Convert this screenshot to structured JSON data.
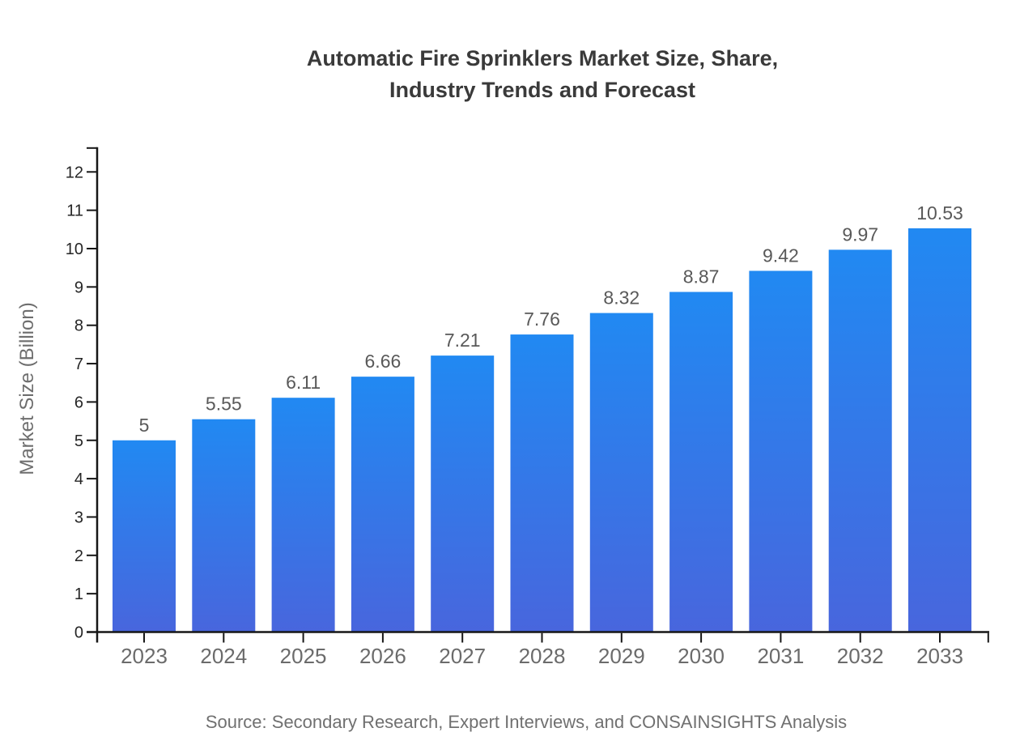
{
  "header": {
    "title_lines": [
      "Automatic Fire Sprinklers Market Size, Share,",
      "Industry Trends and Forecast"
    ]
  },
  "chart_data": {
    "type": "bar",
    "title": "Automatic Fire Sprinklers Market Size, Share, Industry Trends and Forecast",
    "categories": [
      "2023",
      "2024",
      "2025",
      "2026",
      "2027",
      "2028",
      "2029",
      "2030",
      "2031",
      "2032",
      "2033"
    ],
    "values": [
      5,
      5.55,
      6.11,
      6.66,
      7.21,
      7.76,
      8.32,
      8.87,
      9.42,
      9.97,
      10.53
    ],
    "value_labels": [
      "5",
      "5.55",
      "6.11",
      "6.66",
      "7.21",
      "7.76",
      "8.32",
      "8.87",
      "9.42",
      "9.97",
      "10.53"
    ],
    "xlabel": "",
    "ylabel": "Market Size (Billion)",
    "ylim": [
      0,
      12.6
    ],
    "yticks": [
      0,
      1,
      2,
      3,
      4,
      5,
      6,
      7,
      8,
      9,
      10,
      11,
      12
    ],
    "grid": false,
    "legend": "none",
    "bar_gradient_top": "#2189f2",
    "bar_gradient_bottom": "#4866dd"
  },
  "footer": {
    "source": "Source: Secondary Research, Expert Interviews, and CONSAINSIGHTS Analysis"
  },
  "colors": {
    "background": "#ffffff",
    "title": "#3a3a3a",
    "axis": "#161616",
    "y_tick_label": "#262626",
    "x_tick_label": "#6b6b6b",
    "value_label": "#595959",
    "y_axis_title": "#6e6e6e",
    "source": "#707070"
  }
}
